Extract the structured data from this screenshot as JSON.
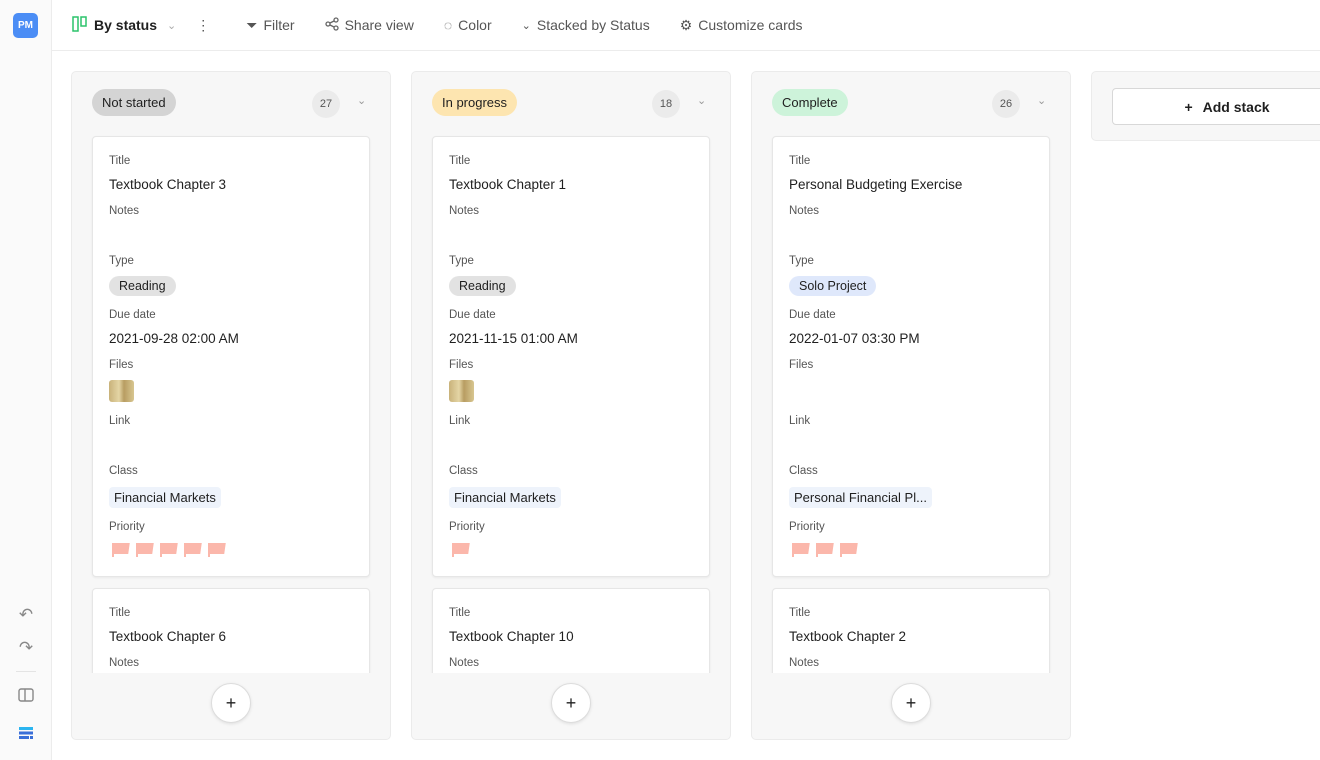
{
  "sidebar": {
    "logo": "PM"
  },
  "toolbar": {
    "view": "By status",
    "filter": "Filter",
    "share": "Share view",
    "color": "Color",
    "stacked": "Stacked by Status",
    "customize": "Customize cards"
  },
  "labels": {
    "title": "Title",
    "notes": "Notes",
    "type": "Type",
    "due": "Due date",
    "files": "Files",
    "link": "Link",
    "class": "Class",
    "priority": "Priority"
  },
  "add_stack": "Add stack",
  "columns": [
    {
      "name": "Not started",
      "count": "27",
      "color": "#d4d4d4",
      "card": {
        "title": "Textbook Chapter 3",
        "type": "Reading",
        "type_color": "#e2e2e2",
        "due": "2021-09-28 02:00 AM",
        "has_file": true,
        "class": "Financial Markets",
        "priority": 5
      },
      "next_title": "Textbook Chapter 6"
    },
    {
      "name": "In progress",
      "count": "18",
      "color": "#fde5b0",
      "card": {
        "title": "Textbook Chapter 1",
        "type": "Reading",
        "type_color": "#e2e2e2",
        "due": "2021-11-15 01:00 AM",
        "has_file": true,
        "class": "Financial Markets",
        "priority": 1
      },
      "next_title": "Textbook Chapter 10"
    },
    {
      "name": "Complete",
      "count": "26",
      "color": "#cdf3da",
      "card": {
        "title": "Personal Budgeting Exercise",
        "type": "Solo Project",
        "type_color": "#dfe8fb",
        "due": "2022-01-07 03:30 PM",
        "has_file": false,
        "class": "Personal Financial Pl...",
        "priority": 3
      },
      "next_title": "Textbook Chapter 2"
    }
  ]
}
